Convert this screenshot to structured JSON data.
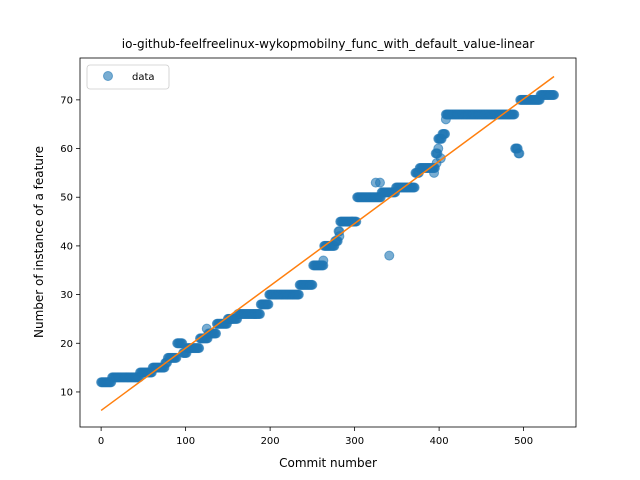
{
  "chart_data": {
    "type": "scatter",
    "title": "io-github-feelfreelinux-wykopmobilny_func_with_default_value-linear",
    "xlabel": "Commit number",
    "ylabel": "Number of instance of a feature",
    "xlim": [
      -25,
      562
    ],
    "ylim": [
      2.8,
      78.6
    ],
    "xticks": [
      0,
      100,
      200,
      300,
      400,
      500
    ],
    "yticks": [
      10,
      20,
      30,
      40,
      50,
      60,
      70
    ],
    "grid": false,
    "legend_position": "top-left",
    "series": [
      {
        "name": "data",
        "kind": "points",
        "color": "#1f77b4",
        "steps": [
          [
            0,
            12
          ],
          [
            12,
            12
          ],
          [
            13,
            13
          ],
          [
            45,
            13
          ],
          [
            46,
            14
          ],
          [
            60,
            14
          ],
          [
            61,
            15
          ],
          [
            75,
            15
          ],
          [
            76,
            16
          ],
          [
            78,
            16
          ],
          [
            79,
            17
          ],
          [
            89,
            17
          ],
          [
            90,
            20
          ],
          [
            96,
            20
          ],
          [
            97,
            18
          ],
          [
            101,
            18
          ],
          [
            102,
            19
          ],
          [
            116,
            19
          ],
          [
            117,
            21
          ],
          [
            126,
            21
          ],
          [
            127,
            22
          ],
          [
            136,
            22
          ],
          [
            137,
            24
          ],
          [
            149,
            24
          ],
          [
            150,
            25
          ],
          [
            161,
            25
          ],
          [
            162,
            26
          ],
          [
            188,
            26
          ],
          [
            189,
            28
          ],
          [
            198,
            28
          ],
          [
            199,
            30
          ],
          [
            234,
            30
          ],
          [
            235,
            32
          ],
          [
            250,
            32
          ],
          [
            251,
            36
          ],
          [
            263,
            36
          ],
          [
            264,
            40
          ],
          [
            276,
            40
          ],
          [
            277,
            41
          ],
          [
            280,
            41
          ],
          [
            281,
            43
          ],
          [
            282,
            43
          ],
          [
            283,
            45
          ],
          [
            302,
            45
          ],
          [
            303,
            50
          ],
          [
            331,
            50
          ],
          [
            332,
            51
          ],
          [
            348,
            51
          ],
          [
            349,
            52
          ],
          [
            371,
            52
          ],
          [
            372,
            55
          ],
          [
            376,
            55
          ],
          [
            377,
            56
          ],
          [
            395,
            56
          ],
          [
            396,
            59
          ],
          [
            398,
            59
          ],
          [
            399,
            62
          ],
          [
            403,
            62
          ],
          [
            404,
            63
          ],
          [
            407,
            63
          ],
          [
            408,
            67
          ],
          [
            489,
            67
          ],
          [
            490,
            60
          ],
          [
            493,
            60
          ],
          [
            494,
            59
          ],
          [
            495,
            59
          ],
          [
            496,
            70
          ],
          [
            519,
            70
          ],
          [
            520,
            71
          ],
          [
            536,
            71
          ]
        ],
        "extra_points": [
          [
            341,
            38
          ],
          [
            325,
            53
          ],
          [
            330,
            53
          ],
          [
            263,
            37
          ],
          [
            408,
            66
          ],
          [
            410,
            67
          ],
          [
            125,
            23
          ],
          [
            155,
            25
          ],
          [
            399,
            60
          ],
          [
            402,
            58
          ],
          [
            282,
            42
          ],
          [
            297,
            45
          ],
          [
            394,
            55
          ],
          [
            397,
            57
          ]
        ]
      },
      {
        "name": "",
        "kind": "line",
        "color": "#ff7f0e",
        "x": [
          0,
          536
        ],
        "y": [
          6.2,
          74.8
        ]
      }
    ]
  }
}
